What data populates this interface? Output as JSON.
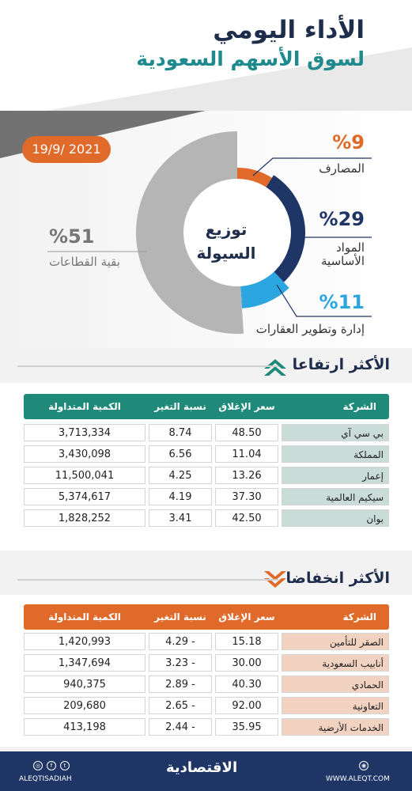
{
  "header": {
    "title_line1": "الأداء اليومي",
    "title_line2": "لسوق الأسهم السعودية",
    "date": "19/9/ 2021"
  },
  "liquidity": {
    "center_line1": "توزيع",
    "center_line2": "السيولة",
    "segments": [
      {
        "pct": "%9",
        "label": "المصارف",
        "value": 9,
        "color": "#e06a2a"
      },
      {
        "pct": "%29",
        "label_line1": "المواد",
        "label_line2": "الأساسية",
        "value": 29,
        "color": "#1f3566"
      },
      {
        "pct": "%11",
        "label": "إدارة وتطوير العقارات",
        "value": 11,
        "color": "#2ba6e0"
      },
      {
        "pct": "%51",
        "label": "بقية القطاعات",
        "value": 51,
        "color": "#b5b5b5"
      }
    ]
  },
  "gainers": {
    "title": "الأكثر ارتفاعا",
    "header_color": "#1f8a7a",
    "name_bg": "#c9dcd8",
    "columns": [
      "الشركة",
      "سعر الإغلاق",
      "نسبة التغير %",
      "الكمية المتداولة"
    ],
    "rows": [
      {
        "name": "بي سي آي",
        "close": "48.50",
        "change": "8.74",
        "volume": "3,713,334"
      },
      {
        "name": "المملكة",
        "close": "11.04",
        "change": "6.56",
        "volume": "3,430,098"
      },
      {
        "name": "إعمار",
        "close": "13.26",
        "change": "4.25",
        "volume": "11,500,041"
      },
      {
        "name": "سيكيم العالمية",
        "close": "37.30",
        "change": "4.19",
        "volume": "5,374,617"
      },
      {
        "name": "بوان",
        "close": "42.50",
        "change": "3.41",
        "volume": "1,828,252"
      }
    ]
  },
  "losers": {
    "title": "الأكثر انخفاضا",
    "header_color": "#e06a2a",
    "name_bg": "#f2d2c0",
    "columns": [
      "الشركة",
      "سعر الإغلاق",
      "نسبة التغير %",
      "الكمية المتداولة"
    ],
    "rows": [
      {
        "name": "الصقر للتأمين",
        "close": "15.18",
        "change": "4.29 -",
        "volume": "1,420,993"
      },
      {
        "name": "أنابيب السعودية",
        "close": "30.00",
        "change": "3.23 -",
        "volume": "1,347,694"
      },
      {
        "name": "الحمادي",
        "close": "40.30",
        "change": "2.89 -",
        "volume": "940,375"
      },
      {
        "name": "التعاونية",
        "close": "92.00",
        "change": "2.65 -",
        "volume": "209,680"
      },
      {
        "name": "الخدمات الأرضية",
        "close": "35.95",
        "change": "2.44 -",
        "volume": "413,198"
      }
    ]
  },
  "footer": {
    "handle": "ALEQTISADIAH",
    "logo": "الاقتصادية",
    "website": "WWW.ALEQT.COM"
  }
}
